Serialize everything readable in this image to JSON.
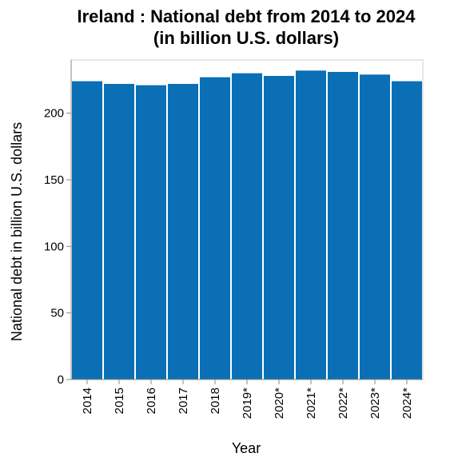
{
  "chart_data": {
    "type": "bar",
    "title_lines": [
      "Ireland : National debt from 2014 to 2024",
      "(in billion U.S. dollars)"
    ],
    "xlabel": "Year",
    "ylabel": "National debt in billion U.S. dollars",
    "categories": [
      "2014",
      "2015",
      "2016",
      "2017",
      "2018",
      "2019*",
      "2020*",
      "2021*",
      "2022*",
      "2023*",
      "2024*"
    ],
    "values": [
      224,
      222,
      221,
      222,
      227,
      230,
      228,
      232,
      231,
      229,
      224
    ],
    "ylim": [
      0,
      240
    ],
    "yticks": [
      0,
      50,
      100,
      150,
      200
    ],
    "bar_color": "#0b6fb5",
    "grid": false,
    "legend": "none"
  }
}
